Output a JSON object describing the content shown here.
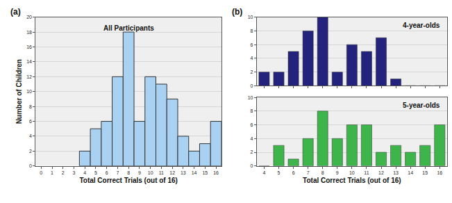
{
  "chart_data": [
    {
      "type": "bar",
      "title": "All Participants",
      "annotations": [
        "(a)"
      ],
      "x": [
        4,
        5,
        6,
        7,
        8,
        9,
        10,
        11,
        12,
        13,
        14,
        15,
        16
      ],
      "values": [
        2,
        5,
        6,
        12,
        18,
        6,
        12,
        11,
        9,
        4,
        2,
        3,
        6
      ],
      "color": "#a9d1f2",
      "xlabel": "Total Correct Trials (out of 16)",
      "ylabel": "Number of Children",
      "xlim": [
        -0.5,
        16.5
      ],
      "xticks": [
        0,
        1,
        2,
        3,
        4,
        5,
        6,
        7,
        8,
        9,
        10,
        11,
        12,
        13,
        14,
        15,
        16
      ],
      "ylim": [
        0,
        20
      ],
      "yticks": [
        0,
        2,
        4,
        6,
        8,
        10,
        12,
        14,
        16,
        18,
        20
      ],
      "grid": true
    },
    {
      "type": "bar",
      "title": "4-year-olds",
      "annotations": [
        "(b)"
      ],
      "x": [
        4,
        5,
        6,
        7,
        8,
        9,
        10,
        11,
        12,
        13,
        14,
        15,
        16
      ],
      "values": [
        2,
        2,
        5,
        8,
        10,
        2,
        6,
        5,
        7,
        1,
        0,
        0,
        0
      ],
      "color": "#23237e",
      "xlim": [
        3.5,
        16.5
      ],
      "xticks": [
        4,
        5,
        6,
        7,
        8,
        9,
        10,
        11,
        12,
        13,
        14,
        15,
        16
      ],
      "ylim": [
        0,
        10
      ],
      "yticks": [
        0,
        2,
        4,
        6,
        8,
        10
      ],
      "grid": true,
      "tick_labels": "y"
    },
    {
      "type": "bar",
      "title": "5-year-olds",
      "x": [
        4,
        5,
        6,
        7,
        8,
        9,
        10,
        11,
        12,
        13,
        14,
        15,
        16
      ],
      "values": [
        0,
        3,
        1,
        4,
        8,
        4,
        6,
        6,
        2,
        3,
        2,
        3,
        6
      ],
      "color": "#3db54a",
      "xlabel": "Total Correct Trials (out of 16)",
      "xlim": [
        3.5,
        16.5
      ],
      "xticks": [
        4,
        5,
        6,
        7,
        8,
        9,
        10,
        11,
        12,
        13,
        14,
        15,
        16
      ],
      "ylim": [
        0,
        10
      ],
      "yticks": [
        0,
        2,
        4,
        6,
        8,
        10
      ],
      "grid": true
    }
  ]
}
